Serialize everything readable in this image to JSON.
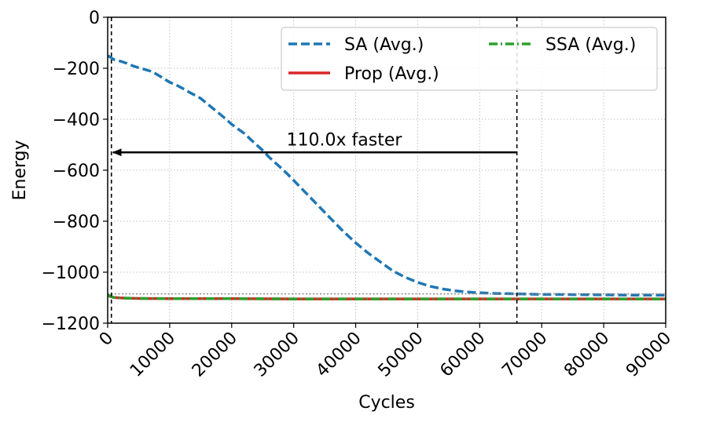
{
  "chart_data": {
    "type": "line",
    "xlabel": "Cycles",
    "ylabel": "Energy",
    "xlim": [
      0,
      90000
    ],
    "ylim": [
      -1200,
      0
    ],
    "grid": true,
    "legend_position": "top-right",
    "x_ticks": [
      0,
      10000,
      20000,
      30000,
      40000,
      50000,
      60000,
      70000,
      80000,
      90000
    ],
    "x_tick_labels": [
      "0",
      "10000",
      "20000",
      "30000",
      "40000",
      "50000",
      "60000",
      "70000",
      "80000",
      "90000"
    ],
    "y_ticks": [
      0,
      -200,
      -400,
      -600,
      -800,
      -1000,
      -1200
    ],
    "y_tick_labels": [
      "0",
      "−200",
      "−400",
      "−600",
      "−800",
      "−1000",
      "−1200"
    ],
    "series": [
      {
        "name": "SA (Avg.)",
        "color": "#1f77b4",
        "style": "dashed",
        "x": [
          0,
          500,
          1000,
          2000,
          3000,
          4000,
          5000,
          6000,
          7000,
          8000,
          9000,
          10000,
          11000,
          12000,
          13000,
          14000,
          15000,
          16000,
          17000,
          18000,
          19000,
          20000,
          21000,
          22000,
          23000,
          24000,
          25000,
          26000,
          27000,
          28000,
          29000,
          30000,
          32000,
          34000,
          36000,
          38000,
          40000,
          42000,
          44000,
          46000,
          48000,
          50000,
          52000,
          54000,
          56000,
          58000,
          60000,
          62000,
          64000,
          66000,
          70000,
          75000,
          80000,
          85000,
          90000
        ],
        "values": [
          -150,
          -158,
          -166,
          -172,
          -180,
          -190,
          -198,
          -205,
          -212,
          -225,
          -240,
          -255,
          -265,
          -278,
          -292,
          -305,
          -318,
          -338,
          -358,
          -378,
          -398,
          -420,
          -438,
          -455,
          -478,
          -500,
          -522,
          -548,
          -570,
          -592,
          -615,
          -640,
          -690,
          -740,
          -790,
          -840,
          -885,
          -925,
          -960,
          -995,
          -1020,
          -1040,
          -1055,
          -1066,
          -1073,
          -1078,
          -1081,
          -1083,
          -1084,
          -1085,
          -1087,
          -1088,
          -1089,
          -1090,
          -1090
        ]
      },
      {
        "name": "Prop (Avg.)",
        "color": "#d62728",
        "style": "solid",
        "x": [
          0,
          300,
          600,
          1000,
          2000,
          3000,
          5000,
          10000,
          20000,
          30000,
          50000,
          70000,
          90000
        ],
        "values": [
          -1090,
          -1094,
          -1097,
          -1099,
          -1101,
          -1102,
          -1103,
          -1104,
          -1104,
          -1105,
          -1105,
          -1105,
          -1105
        ]
      },
      {
        "name": "SSA (Avg.)",
        "color": "#2ca02c",
        "style": "dashdot",
        "x": [
          0,
          300,
          600,
          1000,
          2000,
          3000,
          5000,
          10000,
          20000,
          30000,
          50000,
          70000,
          90000
        ],
        "values": [
          -1088,
          -1092,
          -1096,
          -1099,
          -1101,
          -1102,
          -1103,
          -1104,
          -1104,
          -1105,
          -1105,
          -1105,
          -1105
        ]
      }
    ],
    "reference_line_y": -1085,
    "vlines_x": [
      600,
      66000
    ],
    "annotation": {
      "text": "110.0x faster",
      "arrow_from_x": 66000,
      "arrow_to_x": 600,
      "arrow_y": -530
    }
  }
}
